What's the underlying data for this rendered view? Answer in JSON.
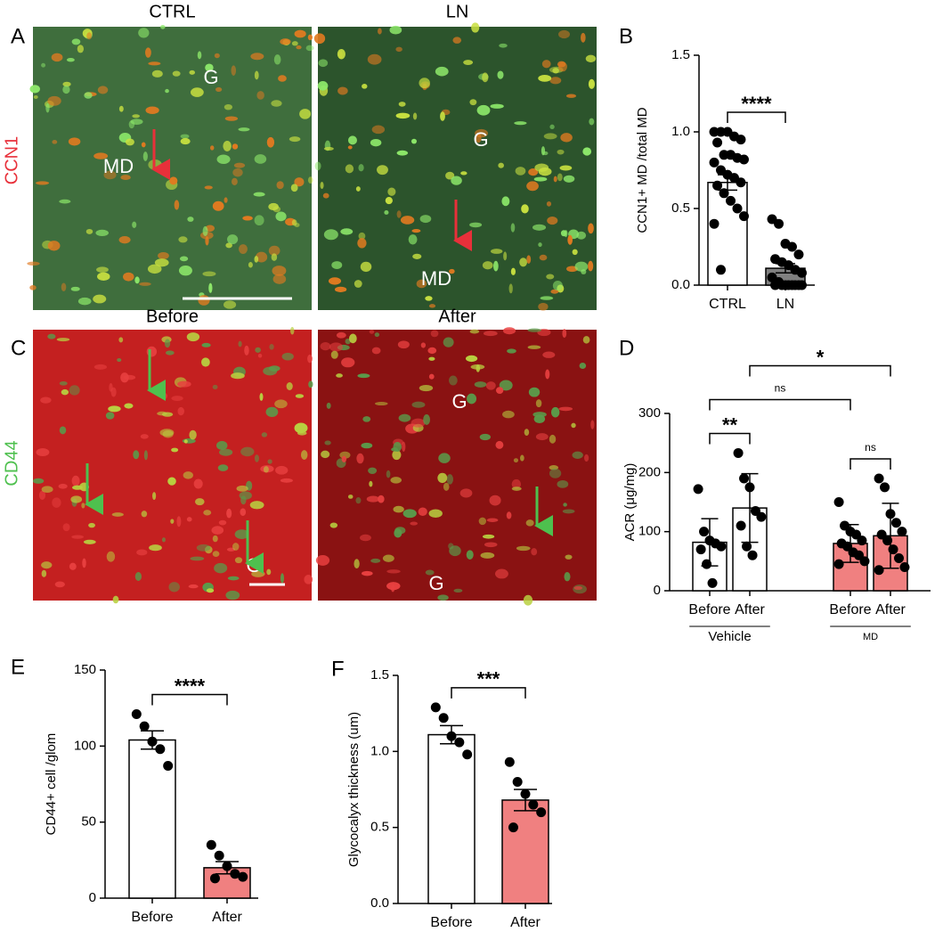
{
  "image_panels": [
    {
      "label": "A",
      "stain": "CCN1",
      "columns": [
        "CTRL",
        "LN"
      ],
      "annotations": [
        [
          "G",
          "MD"
        ],
        [
          "G",
          "MD"
        ]
      ]
    },
    {
      "label": "C",
      "stain": "CD44",
      "columns": [
        "Before",
        "After"
      ],
      "annotations": [
        [
          "G"
        ],
        [
          "G",
          "G"
        ]
      ]
    }
  ],
  "chart_data": [
    {
      "type": "bar",
      "label": "B",
      "ylabel": "CCN1+ MD /total MD",
      "categories": [
        "CTRL",
        "LN"
      ],
      "values": [
        0.67,
        0.11
      ],
      "errors": [
        0.05,
        0.03
      ],
      "colors": [
        "#ffffff",
        "#808080"
      ],
      "points": [
        [
          1.0,
          1.0,
          1.0,
          0.97,
          0.95,
          0.93,
          0.85,
          0.85,
          0.83,
          0.82,
          0.8,
          0.75,
          0.72,
          0.7,
          0.67,
          0.65,
          0.6,
          0.55,
          0.5,
          0.45,
          0.4,
          0.1
        ],
        [
          0.43,
          0.4,
          0.27,
          0.25,
          0.2,
          0.17,
          0.15,
          0.13,
          0.1,
          0.08,
          0.05,
          0.02,
          0,
          0,
          0,
          0,
          0,
          0,
          0,
          0
        ]
      ],
      "ylim": [
        0,
        1.5
      ],
      "yticks": [
        {
          "value": 0,
          "label": "0.0"
        },
        {
          "value": 0.5,
          "label": "0.5"
        },
        {
          "value": 1,
          "label": "1.0"
        },
        {
          "value": 1.5,
          "label": "1.5"
        }
      ],
      "comparisons": [
        {
          "from": 0,
          "to": 1,
          "label": "****"
        }
      ]
    },
    {
      "type": "bar",
      "label": "D",
      "ylabel": "ACR (μg/mg)",
      "categories": [
        "Before",
        "After",
        "Before",
        "After"
      ],
      "values": [
        82,
        140,
        80,
        93
      ],
      "errors": [
        40,
        58,
        32,
        55
      ],
      "colors": [
        "#ffffff",
        "#ffffff",
        "#f08080",
        "#f08080"
      ],
      "points": [
        [
          172,
          100,
          85,
          80,
          75,
          70,
          45,
          13
        ],
        [
          233,
          190,
          175,
          135,
          125,
          110,
          75,
          60
        ],
        [
          150,
          110,
          100,
          95,
          85,
          80,
          75,
          65,
          60,
          50,
          45
        ],
        [
          190,
          175,
          130,
          115,
          100,
          95,
          85,
          70,
          55,
          40,
          35
        ]
      ],
      "groups": [
        {
          "name": "Vehicle",
          "from": 0,
          "to": 1
        },
        {
          "name": "MD",
          "from": 2,
          "to": 3
        }
      ],
      "ylim": [
        0,
        300
      ],
      "yticks": [
        0,
        100,
        200,
        300
      ],
      "comparisons": [
        {
          "from": 0,
          "to": 1,
          "label": "**"
        },
        {
          "from": 2,
          "to": 3,
          "label": "ns"
        },
        {
          "from": 0,
          "to": 2,
          "label": "ns"
        },
        {
          "from": 1,
          "to": 3,
          "label": "*"
        }
      ]
    },
    {
      "type": "bar",
      "label": "E",
      "ylabel": "CD44+ cell /glom",
      "categories": [
        "Before",
        "After"
      ],
      "values": [
        104,
        20
      ],
      "errors": [
        6,
        4
      ],
      "colors": [
        "#ffffff",
        "#f08080"
      ],
      "points": [
        [
          121,
          113,
          103,
          98,
          87
        ],
        [
          35,
          28,
          21,
          16,
          14,
          13
        ]
      ],
      "ylim": [
        0,
        150
      ],
      "yticks": [
        0,
        50,
        100,
        150
      ],
      "comparisons": [
        {
          "from": 0,
          "to": 1,
          "label": "****"
        }
      ]
    },
    {
      "type": "bar",
      "label": "F",
      "ylabel": "Glycocalyx thickness (um)",
      "categories": [
        "Before",
        "After"
      ],
      "values": [
        1.11,
        0.68
      ],
      "errors": [
        0.06,
        0.07
      ],
      "colors": [
        "#ffffff",
        "#f08080"
      ],
      "points": [
        [
          1.29,
          1.22,
          1.1,
          1.06,
          0.98
        ],
        [
          0.93,
          0.8,
          0.72,
          0.65,
          0.6,
          0.5
        ]
      ],
      "ylim": [
        0,
        1.5
      ],
      "yticks": [
        {
          "value": 0,
          "label": "0.0"
        },
        {
          "value": 0.5,
          "label": "0.5"
        },
        {
          "value": 1,
          "label": "1.0"
        },
        {
          "value": 1.5,
          "label": "1.5"
        }
      ],
      "comparisons": [
        {
          "from": 0,
          "to": 1,
          "label": "***"
        }
      ]
    }
  ]
}
